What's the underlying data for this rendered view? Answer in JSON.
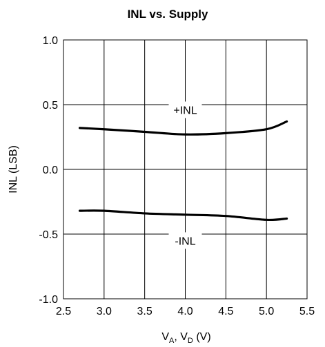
{
  "chart_data": {
    "type": "line",
    "title": "INL vs. Supply",
    "xlabel": {
      "main1": "V",
      "sub1": "A",
      "sep": ", ",
      "main2": "V",
      "sub2": "D",
      "unit": " (V)"
    },
    "ylabel": "INL (LSB)",
    "xlim": [
      2.5,
      5.5
    ],
    "ylim": [
      -1.0,
      1.0
    ],
    "xticks": [
      2.5,
      3.0,
      3.5,
      4.0,
      4.5,
      5.0,
      5.5
    ],
    "yticks": [
      -1.0,
      -0.5,
      0.0,
      0.5,
      1.0
    ],
    "xtick_labels": [
      "2.5",
      "3.0",
      "3.5",
      "4.0",
      "4.5",
      "5.0",
      "5.5"
    ],
    "ytick_labels": [
      "-1.0",
      "-0.5",
      "0.0",
      "0.5",
      "1.0"
    ],
    "grid": true,
    "series": [
      {
        "name": "+INL",
        "x": [
          2.7,
          3.0,
          3.5,
          4.0,
          4.5,
          5.0,
          5.25
        ],
        "y": [
          0.32,
          0.31,
          0.29,
          0.27,
          0.28,
          0.31,
          0.37
        ]
      },
      {
        "name": "-INL",
        "x": [
          2.7,
          3.0,
          3.5,
          4.0,
          4.5,
          5.0,
          5.25
        ],
        "y": [
          -0.32,
          -0.32,
          -0.34,
          -0.35,
          -0.36,
          -0.39,
          -0.38
        ]
      }
    ]
  }
}
